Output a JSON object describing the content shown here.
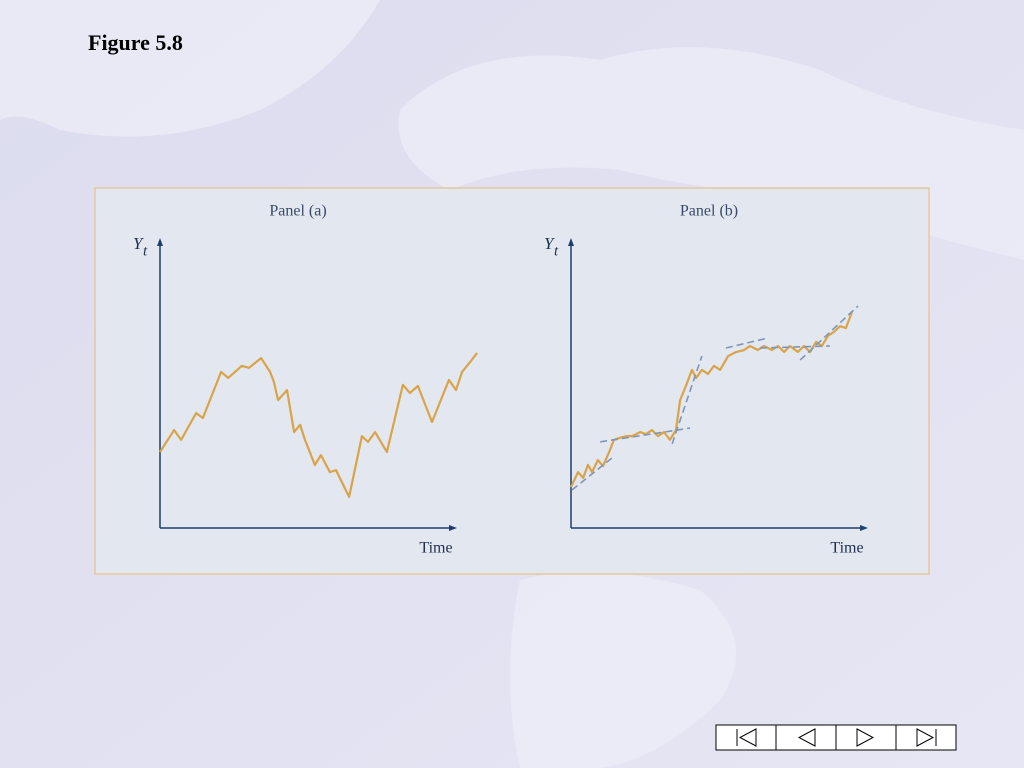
{
  "title": "Figure 5.8",
  "chart_data": [
    {
      "type": "line",
      "title": "Panel (a)",
      "y_label": "Y",
      "y_label_subscript": "t",
      "x_label": "Time",
      "color": "#d9a449",
      "xlim": [
        0,
        100
      ],
      "ylim": [
        0,
        100
      ],
      "x": [
        0,
        4.4,
        6.6,
        11.3,
        13.4,
        19.1,
        21.3,
        25.6,
        27.8,
        31.6,
        34.4,
        35.6,
        36.9,
        39.7,
        41.9,
        43.8,
        45.3,
        48.4,
        50.3,
        53.1,
        55,
        59.1,
        63.1,
        65,
        67.2,
        70.9,
        75.9,
        78.1,
        80.6,
        85,
        90.3,
        92.5,
        94.4,
        96.9,
        99.1
      ],
      "values": [
        26.4,
        34,
        30.6,
        39.9,
        38.2,
        54.2,
        52.1,
        56.3,
        55.6,
        59,
        54.2,
        50.7,
        44.4,
        47.9,
        33.3,
        35.8,
        30.6,
        21.9,
        25.3,
        19.4,
        20.1,
        10.8,
        31.9,
        29.9,
        33.3,
        26.4,
        49.7,
        46.9,
        49.3,
        36.8,
        51.4,
        47.9,
        54.2,
        57.6,
        60.8
      ]
    },
    {
      "type": "line",
      "title": "Panel (b)",
      "y_label": "Y",
      "y_label_subscript": "t",
      "x_label": "Time",
      "color": "#d9a449",
      "trend_color": "#7f96b8",
      "xlim": [
        0,
        100
      ],
      "ylim": [
        0,
        100
      ],
      "x": [
        0,
        2.2,
        3.8,
        5.3,
        6.6,
        8.4,
        10,
        12.2,
        13.4,
        15.3,
        17.2,
        19.1,
        21.6,
        23.4,
        25.3,
        27.2,
        29.1,
        30.9,
        32.8,
        34.1,
        35.9,
        37.8,
        39.1,
        40.9,
        42.8,
        44.7,
        46.6,
        49.1,
        51.6,
        54.1,
        55.9,
        58.4,
        60.3,
        62.8,
        64.7,
        66.6,
        68.4,
        70.9,
        72.8,
        74.7,
        76.6,
        78.4,
        80.3,
        82.2,
        84.1,
        85.9,
        87.8
      ],
      "values": [
        14.2,
        19.4,
        17.4,
        21.9,
        19.4,
        23.6,
        21.5,
        27.1,
        30.6,
        31.3,
        31.9,
        31.9,
        33.3,
        32.6,
        34,
        31.9,
        33.3,
        30.6,
        34,
        44.4,
        49.3,
        54.9,
        52.1,
        54.9,
        53.5,
        56.3,
        54.9,
        59.7,
        61.1,
        61.8,
        63.2,
        61.8,
        63.2,
        61.8,
        63.2,
        61.1,
        63.2,
        61.1,
        63.2,
        61.1,
        64.6,
        63.2,
        66.7,
        68.1,
        70.1,
        69.4,
        75
      ],
      "trend_lines": [
        {
          "x": [
            0.3,
            12.8
          ],
          "values": [
            13.2,
            24.3
          ]
        },
        {
          "x": [
            9.1,
            37.2
          ],
          "values": [
            29.9,
            34.7
          ]
        },
        {
          "x": [
            31.6,
            40.9
          ],
          "values": [
            29.2,
            59.7
          ]
        },
        {
          "x": [
            48.4,
            61.6
          ],
          "values": [
            62.5,
            66
          ]
        },
        {
          "x": [
            59.1,
            80.9
          ],
          "values": [
            62.5,
            63.2
          ]
        },
        {
          "x": [
            71.6,
            89.7
          ],
          "values": [
            58.3,
            77.1
          ]
        }
      ]
    }
  ]
}
